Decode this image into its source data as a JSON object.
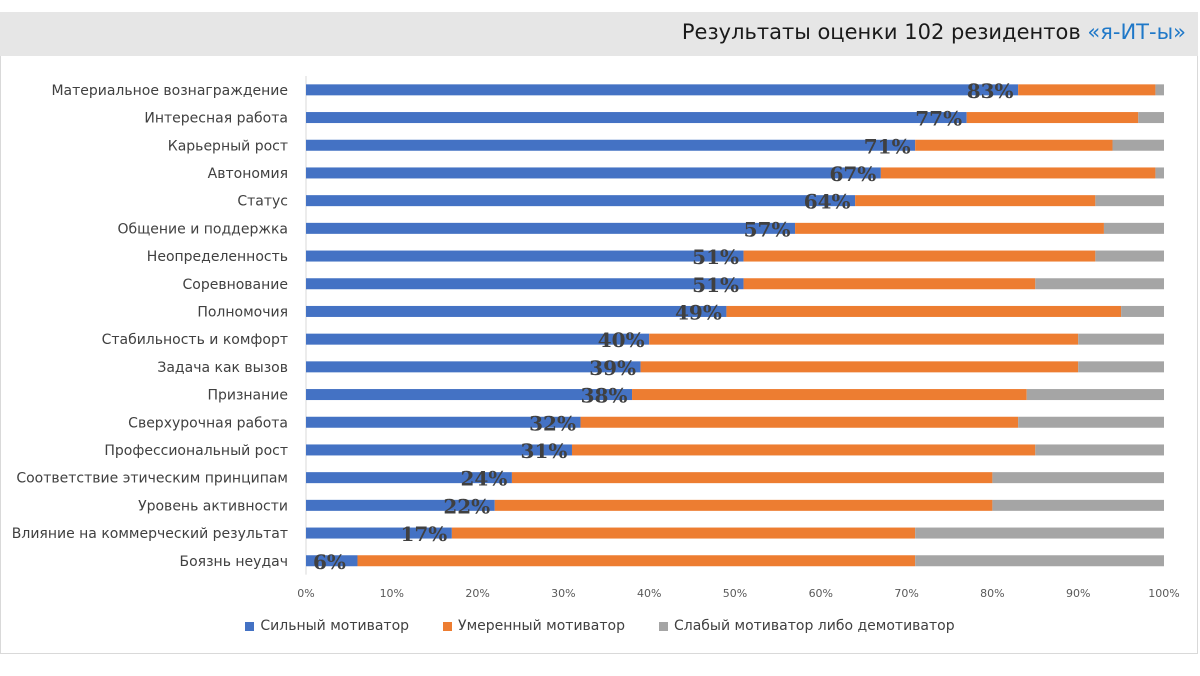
{
  "chart_data": {
    "type": "bar",
    "orientation": "horizontal",
    "stacked": true,
    "title_prefix": "Результаты оценки 102  резидентов ",
    "title_highlight": "«я-ИТ-ы»",
    "categories": [
      "Материальное вознаграждение",
      "Интересная работа",
      "Карьерный рост",
      "Автономия",
      "Статус",
      "Общение и поддержка",
      "Неопределенность",
      "Соревнование",
      "Полномочия",
      "Стабильность и комфорт",
      "Задача как вызов",
      "Признание",
      "Сверхурочная работа",
      "Профессиональный рост",
      "Соответствие этическим принципам",
      "Уровень активности",
      "Влияние на коммерческий результат",
      "Боязнь неудач"
    ],
    "series": [
      {
        "name": "Сильный мотиватор",
        "color": "#4472c4",
        "values": [
          83,
          77,
          71,
          67,
          64,
          57,
          51,
          51,
          49,
          40,
          39,
          38,
          32,
          31,
          24,
          22,
          17,
          6
        ]
      },
      {
        "name": "Умеренный мотиватор",
        "color": "#ed7d31",
        "values": [
          16,
          20,
          23,
          32,
          28,
          36,
          41,
          34,
          46,
          50,
          51,
          46,
          51,
          54,
          56,
          58,
          54,
          65
        ]
      },
      {
        "name": "Слабый мотиватор либо демотиватор",
        "color": "#a5a5a5",
        "values": [
          1,
          3,
          6,
          1,
          8,
          7,
          8,
          15,
          5,
          10,
          10,
          16,
          17,
          15,
          20,
          20,
          29,
          29
        ]
      }
    ],
    "data_labels": [
      "83%",
      "77%",
      "71%",
      "67%",
      "64%",
      "57%",
      "51%",
      "51%",
      "49%",
      "40%",
      "39%",
      "38%",
      "32%",
      "31%",
      "24%",
      "22%",
      "17%",
      "6%"
    ],
    "xlim": [
      0,
      100
    ],
    "xticks": [
      "0%",
      "10%",
      "20%",
      "30%",
      "40%",
      "50%",
      "60%",
      "70%",
      "80%",
      "90%",
      "100%"
    ],
    "legend_position": "bottom",
    "grid": false
  }
}
